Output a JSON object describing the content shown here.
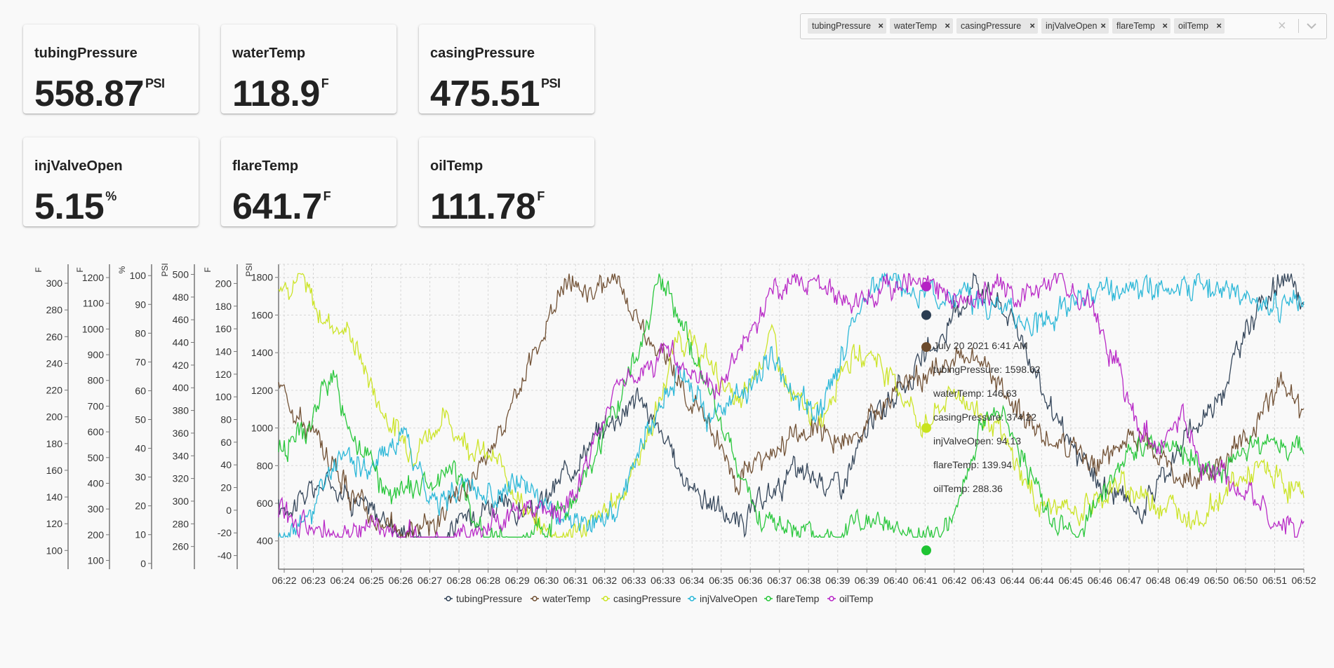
{
  "metrics": [
    {
      "name": "tubingPressure",
      "value": "558.87",
      "unit": "PSI"
    },
    {
      "name": "waterTemp",
      "value": "118.9",
      "unit": "F"
    },
    {
      "name": "casingPressure",
      "value": "475.51",
      "unit": "PSI"
    },
    {
      "name": "injValveOpen",
      "value": "5.15",
      "unit": "%"
    },
    {
      "name": "flareTemp",
      "value": "641.7",
      "unit": "F"
    },
    {
      "name": "oilTemp",
      "value": "111.78",
      "unit": "F"
    }
  ],
  "selector": {
    "chips": [
      "tubingPressure",
      "waterTemp",
      "casingPressure",
      "injValveOpen",
      "flareTemp",
      "oilTemp"
    ],
    "remove_glyph": "×",
    "clear_glyph": "×"
  },
  "colors": {
    "tubingPressure": "#2b3d52",
    "waterTemp": "#6b4a2c",
    "casingPressure": "#c9e31d",
    "injValveOpen": "#22b4d6",
    "flareTemp": "#1fc433",
    "oilTemp": "#b520c4",
    "axis": "#666666",
    "grid": "#d7d7d7"
  },
  "chart_data": {
    "type": "line",
    "x_ticks": [
      "06:22",
      "06:23",
      "06:24",
      "06:25",
      "06:26",
      "06:27",
      "06:28",
      "06:28",
      "06:29",
      "06:30",
      "06:31",
      "06:32",
      "06:33",
      "06:33",
      "06:34",
      "06:35",
      "06:36",
      "06:37",
      "06:38",
      "06:39",
      "06:39",
      "06:40",
      "06:41",
      "06:42",
      "06:43",
      "06:44",
      "06:44",
      "06:45",
      "06:46",
      "06:47",
      "06:48",
      "06:49",
      "06:50",
      "06:50",
      "06:51",
      "06:52"
    ],
    "axes": [
      {
        "unit": "F",
        "ticks": [
          "300",
          "280",
          "260",
          "240",
          "220",
          "200",
          "180",
          "160",
          "140",
          "120",
          "100"
        ],
        "range": [
          86,
          310
        ]
      },
      {
        "unit": "F",
        "ticks": [
          "1200",
          "1100",
          "1000",
          "900",
          "800",
          "700",
          "600",
          "500",
          "400",
          "300",
          "200",
          "100"
        ],
        "range": [
          66,
          1230
        ]
      },
      {
        "unit": "%",
        "ticks": [
          "100",
          "90",
          "80",
          "70",
          "60",
          "50",
          "40",
          "30",
          "20",
          "10",
          "0"
        ],
        "range": [
          -2,
          102
        ]
      },
      {
        "unit": "PSI",
        "ticks": [
          "500",
          "480",
          "460",
          "440",
          "420",
          "400",
          "380",
          "360",
          "340",
          "320",
          "300",
          "280",
          "260"
        ],
        "range": [
          240,
          504
        ]
      },
      {
        "unit": "F",
        "ticks": [
          "200",
          "180",
          "160",
          "140",
          "120",
          "100",
          "80",
          "60",
          "40",
          "20",
          "0",
          "-20",
          "-40"
        ],
        "range": [
          -52,
          212
        ]
      },
      {
        "unit": "PSI",
        "ticks": [
          "1800",
          "1600",
          "1400",
          "1200",
          "1000",
          "800",
          "600",
          "400"
        ],
        "range": [
          250,
          1840
        ]
      }
    ],
    "series": [
      {
        "name": "tubingPressure",
        "keys": [
          [
            0,
            560
          ],
          [
            0.05,
            720
          ],
          [
            0.1,
            520
          ],
          [
            0.15,
            380
          ],
          [
            0.2,
            600
          ],
          [
            0.25,
            540
          ],
          [
            0.3,
            900
          ],
          [
            0.35,
            1180
          ],
          [
            0.4,
            700
          ],
          [
            0.45,
            480
          ],
          [
            0.5,
            760
          ],
          [
            0.55,
            700
          ],
          [
            0.58,
            1050
          ],
          [
            0.62,
            1300
          ],
          [
            0.65,
            1500
          ],
          [
            0.68,
            1800
          ],
          [
            0.72,
            1550
          ],
          [
            0.76,
            1000
          ],
          [
            0.8,
            700
          ],
          [
            0.84,
            560
          ],
          [
            0.88,
            900
          ],
          [
            0.92,
            1200
          ],
          [
            0.95,
            1600
          ],
          [
            0.98,
            1800
          ],
          [
            1,
            1650
          ]
        ]
      },
      {
        "name": "waterTemp",
        "keys": [
          [
            0,
            1250
          ],
          [
            0.04,
            900
          ],
          [
            0.08,
            600
          ],
          [
            0.12,
            420
          ],
          [
            0.16,
            520
          ],
          [
            0.2,
            780
          ],
          [
            0.24,
            1300
          ],
          [
            0.28,
            1800
          ],
          [
            0.3,
            1700
          ],
          [
            0.33,
            1800
          ],
          [
            0.36,
            1500
          ],
          [
            0.4,
            1150
          ],
          [
            0.42,
            1050
          ],
          [
            0.45,
            700
          ],
          [
            0.48,
            900
          ],
          [
            0.52,
            1000
          ],
          [
            0.56,
            900
          ],
          [
            0.6,
            1200
          ],
          [
            0.64,
            1300
          ],
          [
            0.68,
            1400
          ],
          [
            0.72,
            1100
          ],
          [
            0.76,
            900
          ],
          [
            0.8,
            800
          ],
          [
            0.84,
            950
          ],
          [
            0.88,
            700
          ],
          [
            0.92,
            800
          ],
          [
            0.95,
            1000
          ],
          [
            0.98,
            1250
          ],
          [
            1,
            1050
          ]
        ]
      },
      {
        "name": "casingPressure",
        "keys": [
          [
            0,
            1750
          ],
          [
            0.02,
            1800
          ],
          [
            0.04,
            1600
          ],
          [
            0.07,
            1500
          ],
          [
            0.1,
            1100
          ],
          [
            0.13,
            880
          ],
          [
            0.16,
            1050
          ],
          [
            0.19,
            900
          ],
          [
            0.22,
            780
          ],
          [
            0.25,
            480
          ],
          [
            0.28,
            420
          ],
          [
            0.31,
            500
          ],
          [
            0.34,
            700
          ],
          [
            0.37,
            1100
          ],
          [
            0.39,
            1500
          ],
          [
            0.42,
            1350
          ],
          [
            0.45,
            1100
          ],
          [
            0.48,
            1500
          ],
          [
            0.5,
            1150
          ],
          [
            0.53,
            1050
          ],
          [
            0.55,
            1350
          ],
          [
            0.58,
            1400
          ],
          [
            0.6,
            1250
          ],
          [
            0.63,
            1000
          ],
          [
            0.66,
            1200
          ],
          [
            0.7,
            1000
          ],
          [
            0.74,
            600
          ],
          [
            0.78,
            550
          ],
          [
            0.82,
            700
          ],
          [
            0.86,
            600
          ],
          [
            0.9,
            520
          ],
          [
            0.93,
            700
          ],
          [
            0.96,
            780
          ],
          [
            1,
            640
          ]
        ]
      },
      {
        "name": "injValveOpen",
        "keys": [
          [
            0,
            400
          ],
          [
            0.03,
            520
          ],
          [
            0.06,
            880
          ],
          [
            0.09,
            760
          ],
          [
            0.12,
            1000
          ],
          [
            0.15,
            600
          ],
          [
            0.18,
            700
          ],
          [
            0.21,
            620
          ],
          [
            0.24,
            700
          ],
          [
            0.27,
            560
          ],
          [
            0.3,
            460
          ],
          [
            0.33,
            560
          ],
          [
            0.36,
            1000
          ],
          [
            0.39,
            1300
          ],
          [
            0.42,
            1050
          ],
          [
            0.45,
            1150
          ],
          [
            0.48,
            1400
          ],
          [
            0.5,
            1200
          ],
          [
            0.53,
            1050
          ],
          [
            0.56,
            1600
          ],
          [
            0.59,
            1800
          ],
          [
            0.62,
            1700
          ],
          [
            0.64,
            1750
          ],
          [
            0.66,
            1700
          ],
          [
            0.7,
            1650
          ],
          [
            0.74,
            1550
          ],
          [
            0.78,
            1700
          ],
          [
            0.82,
            1700
          ],
          [
            0.86,
            1750
          ],
          [
            0.9,
            1780
          ],
          [
            0.94,
            1700
          ],
          [
            0.97,
            1650
          ],
          [
            1,
            1700
          ]
        ]
      },
      {
        "name": "flareTemp",
        "keys": [
          [
            0,
            900
          ],
          [
            0.03,
            1000
          ],
          [
            0.05,
            1300
          ],
          [
            0.08,
            900
          ],
          [
            0.11,
            620
          ],
          [
            0.14,
            700
          ],
          [
            0.17,
            800
          ],
          [
            0.2,
            420
          ],
          [
            0.23,
            380
          ],
          [
            0.26,
            450
          ],
          [
            0.29,
            620
          ],
          [
            0.32,
            1000
          ],
          [
            0.35,
            1400
          ],
          [
            0.37,
            1800
          ],
          [
            0.39,
            1600
          ],
          [
            0.42,
            1200
          ],
          [
            0.45,
            750
          ],
          [
            0.47,
            500
          ],
          [
            0.5,
            480
          ],
          [
            0.53,
            400
          ],
          [
            0.56,
            520
          ],
          [
            0.59,
            460
          ],
          [
            0.62,
            420
          ],
          [
            0.65,
            440
          ],
          [
            0.67,
            700
          ],
          [
            0.69,
            1100
          ],
          [
            0.71,
            1050
          ],
          [
            0.73,
            800
          ],
          [
            0.75,
            550
          ],
          [
            0.78,
            420
          ],
          [
            0.81,
            720
          ],
          [
            0.84,
            900
          ],
          [
            0.87,
            900
          ],
          [
            0.9,
            780
          ],
          [
            0.93,
            800
          ],
          [
            0.96,
            920
          ],
          [
            1,
            900
          ]
        ]
      },
      {
        "name": "oilTemp",
        "keys": [
          [
            0,
            560
          ],
          [
            0.03,
            480
          ],
          [
            0.06,
            420
          ],
          [
            0.09,
            500
          ],
          [
            0.12,
            420
          ],
          [
            0.15,
            380
          ],
          [
            0.18,
            420
          ],
          [
            0.21,
            520
          ],
          [
            0.24,
            560
          ],
          [
            0.27,
            520
          ],
          [
            0.3,
            780
          ],
          [
            0.33,
            1250
          ],
          [
            0.36,
            1300
          ],
          [
            0.38,
            1450
          ],
          [
            0.4,
            1300
          ],
          [
            0.43,
            1200
          ],
          [
            0.46,
            1500
          ],
          [
            0.49,
            1750
          ],
          [
            0.52,
            1800
          ],
          [
            0.55,
            1650
          ],
          [
            0.58,
            1700
          ],
          [
            0.61,
            1800
          ],
          [
            0.64,
            1750
          ],
          [
            0.67,
            1680
          ],
          [
            0.7,
            1750
          ],
          [
            0.73,
            1700
          ],
          [
            0.76,
            1800
          ],
          [
            0.79,
            1700
          ],
          [
            0.82,
            1300
          ],
          [
            0.84,
            1000
          ],
          [
            0.86,
            900
          ],
          [
            0.88,
            1100
          ],
          [
            0.9,
            800
          ],
          [
            0.93,
            700
          ],
          [
            0.96,
            600
          ],
          [
            0.98,
            450
          ],
          [
            1,
            500
          ]
        ]
      }
    ],
    "tooltip": {
      "time": "July 20 2021 6:41 AM",
      "rows": [
        {
          "name": "tubingPressure",
          "value": "1598.62"
        },
        {
          "name": "waterTemp",
          "value": "146.63"
        },
        {
          "name": "casingPressure",
          "value": "374.22"
        },
        {
          "name": "injValveOpen",
          "value": "94.13"
        },
        {
          "name": "flareTemp",
          "value": "139.94"
        },
        {
          "name": "oilTemp",
          "value": "288.36"
        }
      ],
      "markers": [
        {
          "series": "oilTemp",
          "y": 1752
        },
        {
          "series": "tubingPressure",
          "y": 1600
        },
        {
          "series": "waterTemp",
          "y": 1430
        },
        {
          "series": "casingPressure",
          "y": 1000
        },
        {
          "series": "flareTemp",
          "y": 350
        }
      ]
    },
    "legend": {
      "placement": "bottom-center",
      "items": [
        "tubingPressure",
        "waterTemp",
        "casingPressure",
        "injValveOpen",
        "flareTemp",
        "oilTemp"
      ]
    },
    "grid": true
  }
}
